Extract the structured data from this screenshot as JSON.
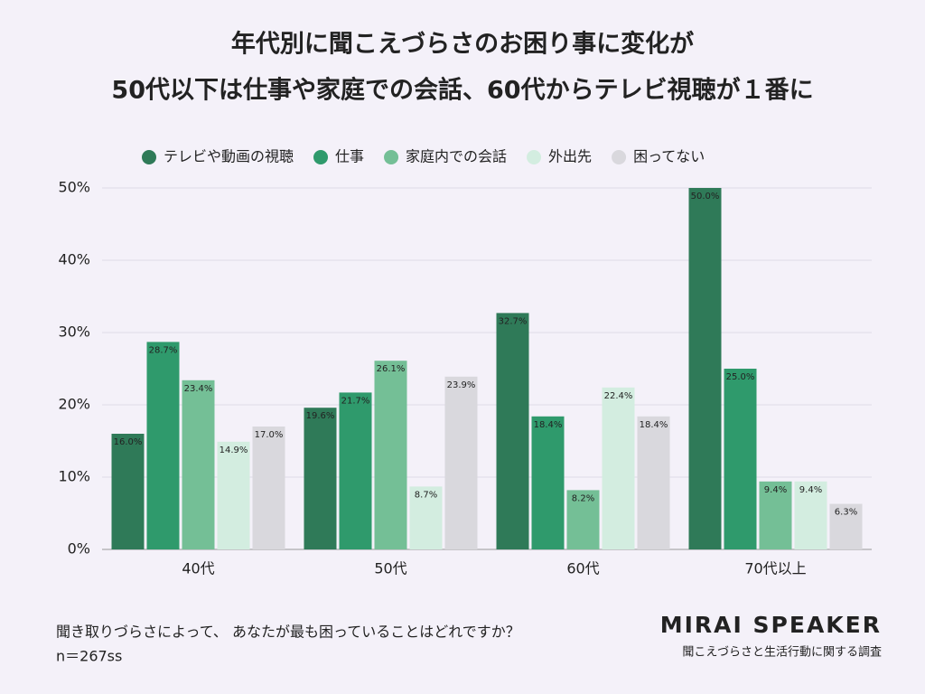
{
  "chart_data": {
    "type": "bar",
    "title": [
      "年代別に聞こえづらさのお困り事に変化が",
      "50代以下は仕事や家庭での会話、60代からテレビ視聴が１番に"
    ],
    "categories": [
      "40代",
      "50代",
      "60代",
      "70代以上"
    ],
    "series": [
      {
        "name": "テレビや動画の視聴",
        "color": "#2f7a58",
        "label_color": "#ffffff",
        "values": [
          16.0,
          19.6,
          32.7,
          50.0
        ],
        "value_labels": [
          "16.0%",
          "19.6%",
          "32.7%",
          "50.0%"
        ]
      },
      {
        "name": "仕事",
        "color": "#2f9a6c",
        "label_color": "#ffffff",
        "values": [
          28.7,
          21.7,
          18.4,
          25.0
        ],
        "value_labels": [
          "28.7%",
          "21.7%",
          "18.4%",
          "25.0%"
        ]
      },
      {
        "name": "家庭内での会話",
        "color": "#74bf96",
        "label_color": "#222222",
        "values": [
          23.4,
          26.1,
          8.2,
          9.4
        ],
        "value_labels": [
          "23.4%",
          "26.1%",
          "8.2%",
          "9.4%"
        ]
      },
      {
        "name": "外出先",
        "color": "#d3ede0",
        "label_color": "#222222",
        "values": [
          14.9,
          8.7,
          22.4,
          9.4
        ],
        "value_labels": [
          "14.9%",
          "8.7%",
          "22.4%",
          "9.4%"
        ]
      },
      {
        "name": "困ってない",
        "color": "#d9d8dd",
        "label_color": "#222222",
        "values": [
          17.0,
          23.9,
          18.4,
          6.3
        ],
        "value_labels": [
          "17.0%",
          "23.9%",
          "18.4%",
          "6.3%"
        ]
      }
    ],
    "ylim": [
      0,
      50
    ],
    "yticks": [
      {
        "value": 0,
        "label": "0%"
      },
      {
        "value": 10,
        "label": "10%"
      },
      {
        "value": 20,
        "label": "20%"
      },
      {
        "value": 30,
        "label": "30%"
      },
      {
        "value": 40,
        "label": "40%"
      },
      {
        "value": 50,
        "label": "50%"
      }
    ],
    "grid": true,
    "question": "聞き取りづらさによって、 あなたが最も困っていることはどれですか？",
    "sample": "n＝267ss",
    "brand": "MIRAI SPEAKER",
    "source": "聞こえづらさと生活行動に関する調査"
  }
}
